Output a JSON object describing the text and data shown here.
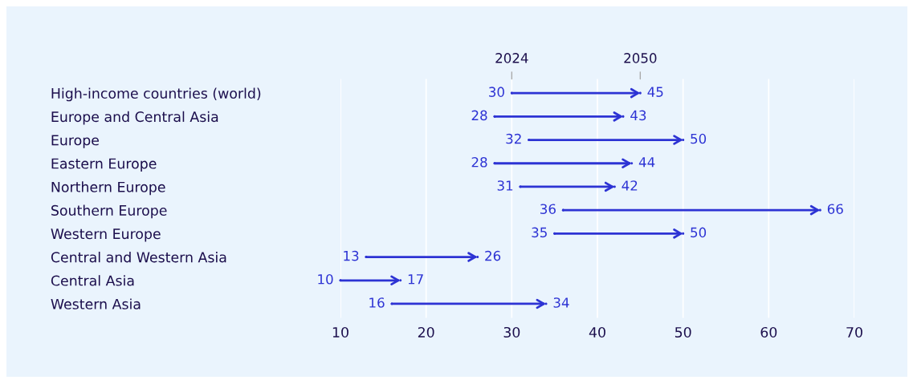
{
  "chart_data": {
    "type": "scatter",
    "orientation": "horizontal",
    "data_labels": true,
    "grid": "x",
    "legend": false,
    "categories": [
      "High-income countries (world)",
      "Europe and Central Asia",
      "Europe",
      "Eastern Europe",
      "Northern Europe",
      "Southern Europe",
      "Western Europe",
      "Central and Western Asia",
      "Central Asia",
      "Western Asia"
    ],
    "series": [
      {
        "name": "2024",
        "color": "#2d33d4",
        "values": [
          30,
          28,
          32,
          28,
          31,
          36,
          35,
          13,
          10,
          16
        ]
      },
      {
        "name": "2050",
        "color": "#2d33d4",
        "values": [
          45,
          43,
          50,
          44,
          42,
          66,
          50,
          26,
          17,
          34
        ]
      }
    ],
    "xlim": [
      10,
      70
    ],
    "xticks": [
      10,
      20,
      30,
      40,
      50,
      60,
      70
    ]
  }
}
